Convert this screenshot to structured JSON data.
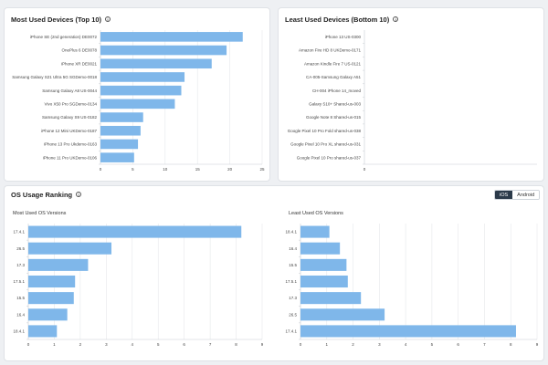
{
  "top_left": {
    "title": "Most Used Devices (Top 10)"
  },
  "top_right": {
    "title": "Least Used Devices (Bottom 10)"
  },
  "os_section": {
    "title": "OS Usage Ranking",
    "toggle": {
      "ios_label": "iOS",
      "android_label": "Android",
      "selected": "iOS"
    },
    "most_used_label": "Most Used OS Versions",
    "least_used_label": "Least Used OS Versions"
  },
  "colors": {
    "bar": "#7fb7ea",
    "axis": "#c8ccd2",
    "grid": "#e6e8eb",
    "text": "#444444",
    "active_toggle": "#2b3a4a"
  },
  "icons": {
    "info": "info-icon"
  },
  "chart_data": [
    {
      "id": "most_devices",
      "type": "bar",
      "orientation": "horizontal",
      "categories": [
        "iPhone SE (2nd generation) DE0072",
        "OnePlus 6 DE0078",
        "iPhone XR DE0021",
        "Samsung Galaxy S21 Ultra 5G SGDemo-0018",
        "Samsung Galaxy A8 US-0044",
        "Vivo X50 Pro SGDemo-0134",
        "Samsung Galaxy S9 US-0182",
        "iPhone 12 Mini UKDemo-0187",
        "iPhone 13 Pro Ukdemo-0163",
        "iPhone 11 Pro UKDemo-0106"
      ],
      "values": [
        22,
        19.5,
        17.2,
        13,
        12.5,
        11.5,
        6.6,
        6.2,
        5.8,
        5.2
      ],
      "xlim": [
        0,
        25
      ],
      "ticks": [
        "0",
        "5",
        "10",
        "15",
        "20",
        "25"
      ]
    },
    {
      "id": "least_devices",
      "type": "bar",
      "orientation": "horizontal",
      "categories": [
        "iPhone 13 US-0300",
        "Amazon Fire HD 8 UKDemo-0171",
        "Amazon Kindle Fire 7 US-0121",
        "CA-005-Samsung Galaxy A51",
        "CH-004 iPhone 14_moved",
        "Galaxy S10+ Shared-us-003",
        "Google Note 8 Shared-us-015",
        "Google Pixel 10 Pro Fold shared-us-038",
        "Google Pixel 10 Pro XL shared-us-031",
        "Google Pixel 10 Pro shared-us-037"
      ],
      "values": [
        0,
        0,
        0,
        0,
        0,
        0,
        0,
        0,
        0,
        0
      ],
      "xlim": [
        0,
        1
      ],
      "ticks": [
        "0"
      ]
    },
    {
      "id": "most_os",
      "type": "bar",
      "orientation": "horizontal",
      "categories": [
        "17.4.1",
        "26.5",
        "17.3",
        "17.5.1",
        "15.5",
        "16.4",
        "18.4.1"
      ],
      "values": [
        8.2,
        3.2,
        2.3,
        1.8,
        1.75,
        1.5,
        1.1
      ],
      "xlim": [
        0,
        9
      ],
      "ticks": [
        "0",
        "1",
        "2",
        "3",
        "4",
        "5",
        "6",
        "7",
        "8",
        "9"
      ]
    },
    {
      "id": "least_os",
      "type": "bar",
      "orientation": "horizontal",
      "categories": [
        "18.4.1",
        "16.4",
        "15.5",
        "17.5.1",
        "17.3",
        "26.5",
        "17.4.1"
      ],
      "values": [
        1.1,
        1.5,
        1.75,
        1.8,
        2.3,
        3.2,
        8.2
      ],
      "xlim": [
        0,
        9
      ],
      "ticks": [
        "0",
        "1",
        "2",
        "3",
        "4",
        "5",
        "6",
        "7",
        "8",
        "9"
      ]
    }
  ]
}
